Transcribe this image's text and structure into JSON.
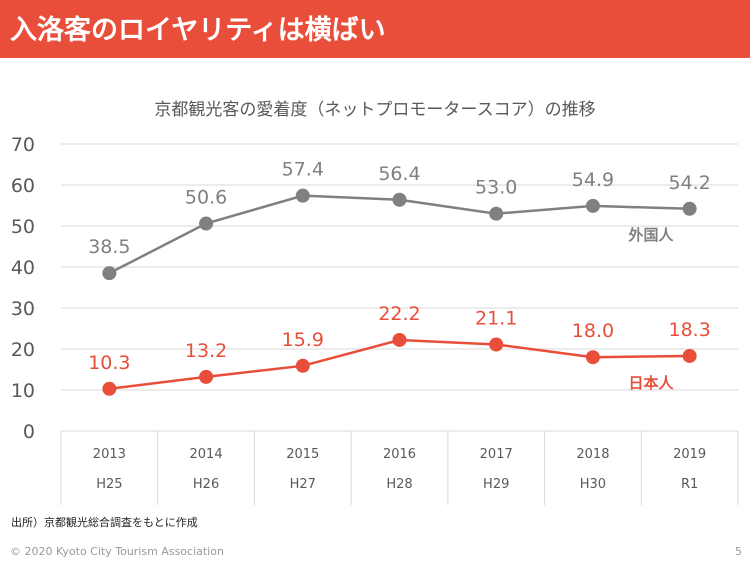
{
  "header": {
    "title": "入洛客のロイヤリティは横ばい"
  },
  "footer": {
    "source": "出所）京都観光総合調査をもとに作成",
    "copyright": "© 2020 Kyoto City Tourism Association",
    "page_number": "5"
  },
  "colors": {
    "accent": "#E84E3A",
    "foreign": "#808080",
    "japanese": "#E84E3A",
    "grid": "#D9D9D9"
  },
  "chart_data": {
    "type": "line",
    "title": "京都観光客の愛着度（ネットプロモータースコア）の推移",
    "xlabel": "",
    "ylabel": "",
    "ylim": [
      0,
      70
    ],
    "yticks": [
      0,
      10,
      20,
      30,
      40,
      50,
      60,
      70
    ],
    "grid": true,
    "categories": [
      "2013",
      "2014",
      "2015",
      "2016",
      "2017",
      "2018",
      "2019"
    ],
    "categories_era": [
      "H25",
      "H26",
      "H27",
      "H28",
      "H29",
      "H30",
      "R1"
    ],
    "series": [
      {
        "name": "外国人",
        "color": "#808080",
        "values": [
          38.5,
          50.6,
          57.4,
          56.4,
          53.0,
          54.9,
          54.2
        ],
        "labels": [
          "38.5",
          "50.6",
          "57.4",
          "56.4",
          "53.0",
          "54.9",
          "54.2"
        ]
      },
      {
        "name": "日本人",
        "color": "#E84E3A",
        "values": [
          10.3,
          13.2,
          15.9,
          22.2,
          21.1,
          18.0,
          18.3
        ],
        "labels": [
          "10.3",
          "13.2",
          "15.9",
          "22.2",
          "21.1",
          "18.0",
          "18.3"
        ]
      }
    ],
    "legend": "inline-right"
  }
}
